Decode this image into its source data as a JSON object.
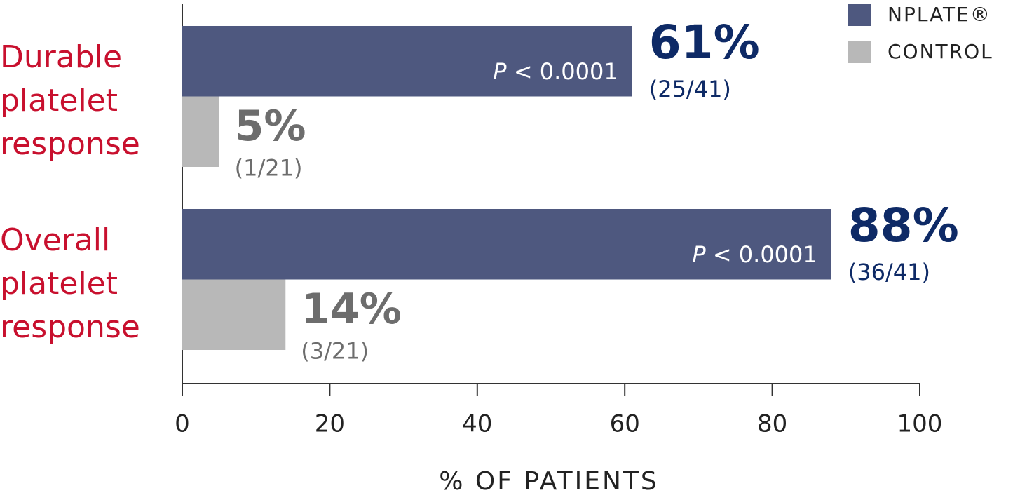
{
  "chart_data": {
    "type": "bar",
    "orientation": "horizontal",
    "categories": [
      "Durable platelet response",
      "Overall platelet response"
    ],
    "category_color": "#c8102e",
    "series": [
      {
        "name": "NPLATE®",
        "color": "#4e587f",
        "label_color": "#0e2a66",
        "values": [
          61,
          88
        ],
        "value_labels": [
          "61%",
          "88%"
        ],
        "fractions": [
          "(25/41)",
          "(36/41)"
        ],
        "annotations": [
          "P < 0.0001",
          "P < 0.0001"
        ]
      },
      {
        "name": "CONTROL",
        "color": "#b8b8b8",
        "label_color": "#6d6d6d",
        "values": [
          5,
          14
        ],
        "value_labels": [
          "5%",
          "14%"
        ],
        "fractions": [
          "(1/21)",
          "(3/21)"
        ]
      }
    ],
    "xlim": [
      0,
      100
    ],
    "xticks": [
      0,
      20,
      40,
      60,
      80,
      100
    ],
    "xlabel": "% OF PATIENTS",
    "legend": "top-right"
  }
}
